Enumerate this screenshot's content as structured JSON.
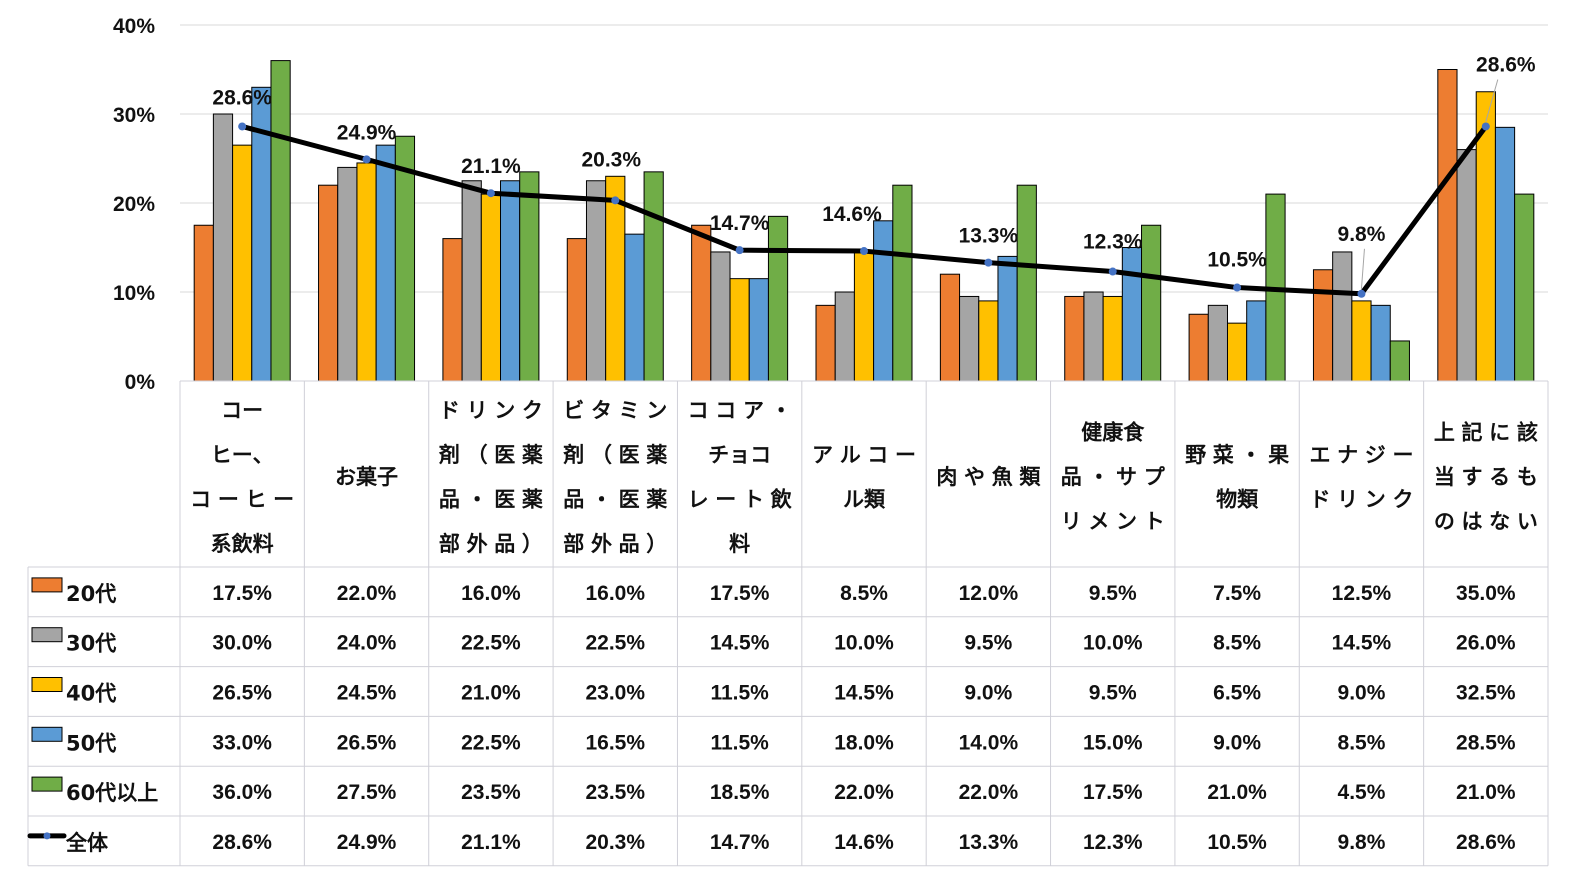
{
  "chart_data": {
    "type": "bar",
    "title": "",
    "xlabel": "",
    "ylabel": "",
    "ylim": [
      0,
      40
    ],
    "yticks": [
      "0%",
      "10%",
      "20%",
      "30%",
      "40%"
    ],
    "ytick_values": [
      0,
      10,
      20,
      30,
      40
    ],
    "grid": true,
    "legend_placement": "table-left",
    "categories": [
      [
        "コー",
        "ヒー、",
        "コーヒー",
        "系飲料"
      ],
      [
        "お菓子"
      ],
      [
        "ドリンク",
        "剤（医薬",
        "品・医薬",
        "部外品）"
      ],
      [
        "ビタミン",
        "剤（医薬",
        "品・医薬",
        "部外品）"
      ],
      [
        "ココア・",
        "チョコ",
        "レート飲",
        "料"
      ],
      [
        "アルコー",
        "ル類"
      ],
      [
        "肉や魚類"
      ],
      [
        "健康食",
        "品・サプ",
        "リメント"
      ],
      [
        "野菜・果",
        "物類"
      ],
      [
        "エナジー",
        "ドリンク"
      ],
      [
        "上記に該",
        "当するも",
        "のはない"
      ]
    ],
    "series": [
      {
        "name": "20代",
        "kind": "bar",
        "color": "#ED7D31",
        "values": [
          17.5,
          22.0,
          16.0,
          16.0,
          17.5,
          8.5,
          12.0,
          9.5,
          7.5,
          12.5,
          35.0
        ],
        "labels": [
          "17.5%",
          "22.0%",
          "16.0%",
          "16.0%",
          "17.5%",
          "8.5%",
          "12.0%",
          "9.5%",
          "7.5%",
          "12.5%",
          "35.0%"
        ]
      },
      {
        "name": "30代",
        "kind": "bar",
        "color": "#A5A5A5",
        "values": [
          30.0,
          24.0,
          22.5,
          22.5,
          14.5,
          10.0,
          9.5,
          10.0,
          8.5,
          14.5,
          26.0
        ],
        "labels": [
          "30.0%",
          "24.0%",
          "22.5%",
          "22.5%",
          "14.5%",
          "10.0%",
          "9.5%",
          "10.0%",
          "8.5%",
          "14.5%",
          "26.0%"
        ]
      },
      {
        "name": "40代",
        "kind": "bar",
        "color": "#FFC000",
        "values": [
          26.5,
          24.5,
          21.0,
          23.0,
          11.5,
          14.5,
          9.0,
          9.5,
          6.5,
          9.0,
          32.5
        ],
        "labels": [
          "26.5%",
          "24.5%",
          "21.0%",
          "23.0%",
          "11.5%",
          "14.5%",
          "9.0%",
          "9.5%",
          "6.5%",
          "9.0%",
          "32.5%"
        ]
      },
      {
        "name": "50代",
        "kind": "bar",
        "color": "#5B9BD5",
        "values": [
          33.0,
          26.5,
          22.5,
          16.5,
          11.5,
          18.0,
          14.0,
          15.0,
          9.0,
          8.5,
          28.5
        ],
        "labels": [
          "33.0%",
          "26.5%",
          "22.5%",
          "16.5%",
          "11.5%",
          "18.0%",
          "14.0%",
          "15.0%",
          "9.0%",
          "8.5%",
          "28.5%"
        ]
      },
      {
        "name": "60代以上",
        "kind": "bar",
        "color": "#70AD47",
        "values": [
          36.0,
          27.5,
          23.5,
          23.5,
          18.5,
          22.0,
          22.0,
          17.5,
          21.0,
          4.5,
          21.0
        ],
        "labels": [
          "36.0%",
          "27.5%",
          "23.5%",
          "23.5%",
          "18.5%",
          "22.0%",
          "22.0%",
          "17.5%",
          "21.0%",
          "4.5%",
          "21.0%"
        ]
      },
      {
        "name": "全体",
        "kind": "line",
        "color": "#000000",
        "marker_color": "#4472C4",
        "values": [
          28.6,
          24.9,
          21.1,
          20.3,
          14.7,
          14.6,
          13.3,
          12.3,
          10.5,
          9.8,
          28.6
        ],
        "labels": [
          "28.6%",
          "24.9%",
          "21.1%",
          "20.3%",
          "14.7%",
          "14.6%",
          "13.3%",
          "12.3%",
          "10.5%",
          "9.8%",
          "28.6%"
        ]
      }
    ]
  }
}
